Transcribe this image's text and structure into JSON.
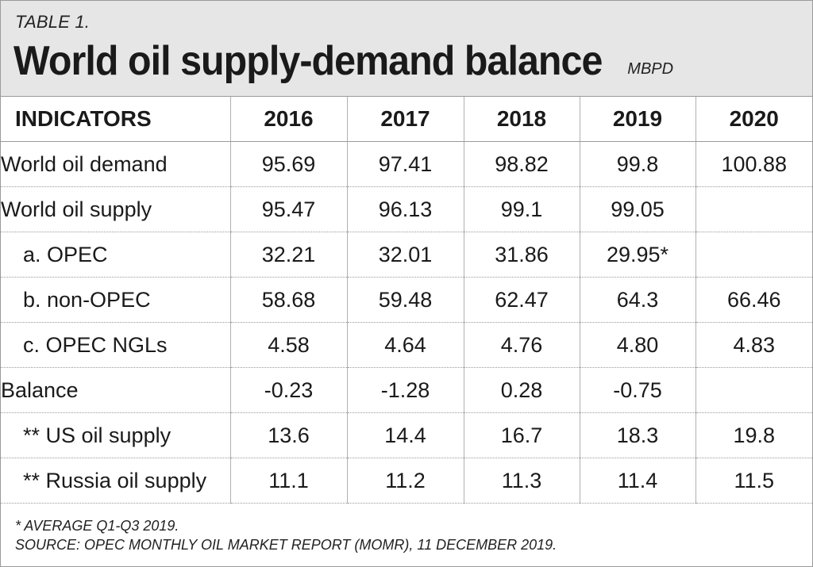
{
  "header": {
    "table_label": "TABLE 1.",
    "title": "World oil supply-demand balance",
    "unit": "MBPD"
  },
  "table": {
    "columns": [
      "INDICATORS",
      "2016",
      "2017",
      "2018",
      "2019",
      "2020"
    ],
    "rows": [
      {
        "label": "World oil demand",
        "indent": false,
        "values": [
          "95.69",
          "97.41",
          "98.82",
          "99.8",
          "100.88"
        ]
      },
      {
        "label": "World oil supply",
        "indent": false,
        "values": [
          "95.47",
          "96.13",
          "99.1",
          "99.05",
          ""
        ]
      },
      {
        "label": "a. OPEC",
        "indent": true,
        "values": [
          "32.21",
          "32.01",
          "31.86",
          "29.95*",
          ""
        ]
      },
      {
        "label": "b. non-OPEC",
        "indent": true,
        "values": [
          "58.68",
          "59.48",
          "62.47",
          "64.3",
          "66.46"
        ]
      },
      {
        "label": "c. OPEC NGLs",
        "indent": true,
        "values": [
          "4.58",
          "4.64",
          "4.76",
          "4.80",
          "4.83"
        ]
      },
      {
        "label": "Balance",
        "indent": false,
        "values": [
          "-0.23",
          "-1.28",
          "0.28",
          "-0.75",
          ""
        ]
      },
      {
        "label": "** US oil supply",
        "indent": true,
        "values": [
          "13.6",
          "14.4",
          "16.7",
          "18.3",
          "19.8"
        ]
      },
      {
        "label": "** Russia oil supply",
        "indent": true,
        "values": [
          "11.1",
          "11.2",
          "11.3",
          "11.4",
          "11.5"
        ]
      }
    ]
  },
  "footer": {
    "note": "* AVERAGE Q1-Q3 2019.",
    "source": "SOURCE: OPEC MONTHLY OIL MARKET REPORT (MOMR), 11 DECEMBER 2019."
  }
}
